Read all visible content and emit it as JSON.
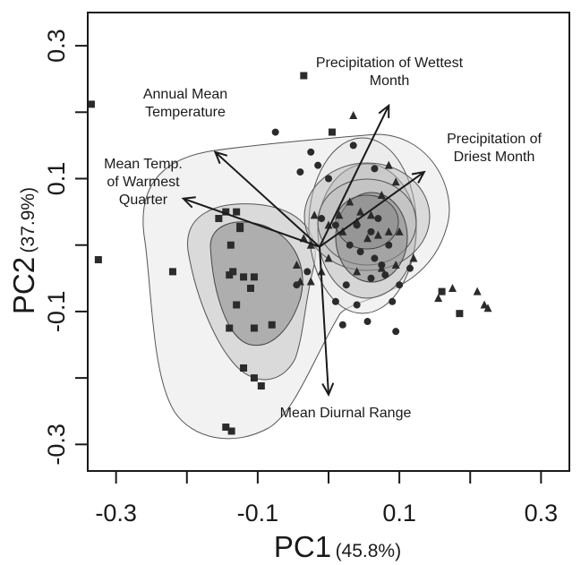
{
  "chart_data": {
    "type": "scatter",
    "title": "",
    "xlabel": "PC1",
    "xlabel_pct": "(45.8%)",
    "ylabel": "PC2",
    "ylabel_pct": "(37.9%)",
    "xlim": [
      -0.34,
      0.34
    ],
    "ylim": [
      -0.34,
      0.35
    ],
    "x_ticks": [
      -0.3,
      -0.2,
      -0.1,
      0.0,
      0.1,
      0.2,
      0.3
    ],
    "x_tick_labels": [
      "-0.3",
      "",
      "-0.1",
      "",
      "0.1",
      "",
      "0.3"
    ],
    "y_ticks": [
      -0.3,
      -0.2,
      -0.1,
      0.0,
      0.1,
      0.2,
      0.3
    ],
    "y_tick_labels": [
      "-0.3",
      "",
      "-0.1",
      "",
      "0.1",
      "",
      "0.3"
    ],
    "grid": false,
    "colors": {
      "outer_contour": "#e6e6e6",
      "mid_contour": "#c9c9c9",
      "inner_contour": "#9b9b9b",
      "contour_stroke": "#555555",
      "points": "#2b2b2b",
      "arrows": "#1a1a1a"
    },
    "series": [
      {
        "marker": "square",
        "points": [
          [
            -0.335,
            0.212
          ],
          [
            -0.325,
            -0.022
          ],
          [
            -0.22,
            -0.04
          ],
          [
            -0.155,
            0.04
          ],
          [
            -0.145,
            0.05
          ],
          [
            -0.14,
            -0.045
          ],
          [
            -0.125,
            0.028
          ],
          [
            -0.13,
            0.05
          ],
          [
            -0.138,
            0.0
          ],
          [
            -0.135,
            -0.04
          ],
          [
            -0.125,
            0.025
          ],
          [
            -0.12,
            -0.048
          ],
          [
            -0.105,
            -0.048
          ],
          [
            -0.11,
            -0.065
          ],
          [
            -0.13,
            -0.09
          ],
          [
            -0.14,
            -0.125
          ],
          [
            -0.105,
            -0.125
          ],
          [
            -0.08,
            -0.12
          ],
          [
            -0.12,
            -0.185
          ],
          [
            -0.105,
            -0.2
          ],
          [
            -0.095,
            -0.212
          ],
          [
            -0.145,
            -0.274
          ],
          [
            -0.137,
            -0.28
          ],
          [
            -0.035,
            0.255
          ],
          [
            0.005,
            0.17
          ],
          [
            0.185,
            -0.103
          ],
          [
            0.16,
            -0.07
          ]
        ]
      },
      {
        "marker": "circle",
        "points": [
          [
            -0.075,
            0.17
          ],
          [
            -0.04,
            0.11
          ],
          [
            -0.025,
            0.14
          ],
          [
            -0.015,
            0.12
          ],
          [
            0.0,
            0.1
          ],
          [
            0.035,
            0.15
          ],
          [
            0.065,
            0.115
          ],
          [
            -0.01,
            0.04
          ],
          [
            0.01,
            0.03
          ],
          [
            0.04,
            0.03
          ],
          [
            0.06,
            0.02
          ],
          [
            0.07,
            0.04
          ],
          [
            0.085,
            0.0
          ],
          [
            0.075,
            -0.03
          ],
          [
            0.06,
            -0.05
          ],
          [
            0.025,
            -0.06
          ],
          [
            0.01,
            -0.085
          ],
          [
            0.04,
            -0.09
          ],
          [
            0.02,
            -0.12
          ],
          [
            0.055,
            -0.115
          ],
          [
            0.09,
            -0.085
          ],
          [
            0.1,
            -0.06
          ],
          [
            -0.03,
            -0.04
          ],
          [
            -0.045,
            -0.06
          ],
          [
            0.115,
            -0.035
          ],
          [
            0.095,
            -0.13
          ],
          [
            0.045,
            -0.01
          ],
          [
            0.03,
            0.0
          ],
          [
            0.065,
            -0.02
          ],
          [
            0.08,
            -0.045
          ]
        ]
      },
      {
        "marker": "triangle",
        "points": [
          [
            0.035,
            0.195
          ],
          [
            0.085,
            0.12
          ],
          [
            0.095,
            0.095
          ],
          [
            0.075,
            0.075
          ],
          [
            0.03,
            0.065
          ],
          [
            0.015,
            0.045
          ],
          [
            0.045,
            0.05
          ],
          [
            0.06,
            0.045
          ],
          [
            0.04,
            0.035
          ],
          [
            0.02,
            0.02
          ],
          [
            -0.02,
            0.045
          ],
          [
            0.0,
            0.03
          ],
          [
            0.055,
            0.01
          ],
          [
            0.07,
            0.015
          ],
          [
            0.085,
            0.02
          ],
          [
            0.1,
            0.02
          ],
          [
            0.12,
            -0.02
          ],
          [
            0.095,
            -0.03
          ],
          [
            0.075,
            -0.035
          ],
          [
            0.04,
            -0.04
          ],
          [
            -0.01,
            -0.04
          ],
          [
            -0.045,
            -0.03
          ],
          [
            -0.04,
            -0.055
          ],
          [
            -0.025,
            -0.055
          ],
          [
            0.0,
            -0.02
          ],
          [
            0.155,
            -0.08
          ],
          [
            0.175,
            -0.065
          ],
          [
            0.21,
            -0.07
          ],
          [
            0.22,
            -0.09
          ],
          [
            0.225,
            -0.095
          ],
          [
            -0.025,
            0.0
          ],
          [
            -0.035,
            0.01
          ]
        ]
      }
    ],
    "vectors": [
      {
        "label": [
          "Annual Mean",
          "Temperature"
        ],
        "end": [
          -0.16,
          0.14
        ]
      },
      {
        "label": [
          "Precipitation of Wettest",
          "Month"
        ],
        "end": [
          0.085,
          0.21
        ]
      },
      {
        "label": [
          "Precipitation of",
          "Driest Month"
        ],
        "end": [
          0.135,
          0.11
        ]
      },
      {
        "label": [
          "Mean Temp.",
          "of Warmest",
          "Quarter"
        ],
        "end": [
          -0.205,
          0.07
        ]
      },
      {
        "label": [
          "Mean Diurnal Range"
        ],
        "end": [
          0.0,
          -0.225
        ]
      }
    ]
  }
}
